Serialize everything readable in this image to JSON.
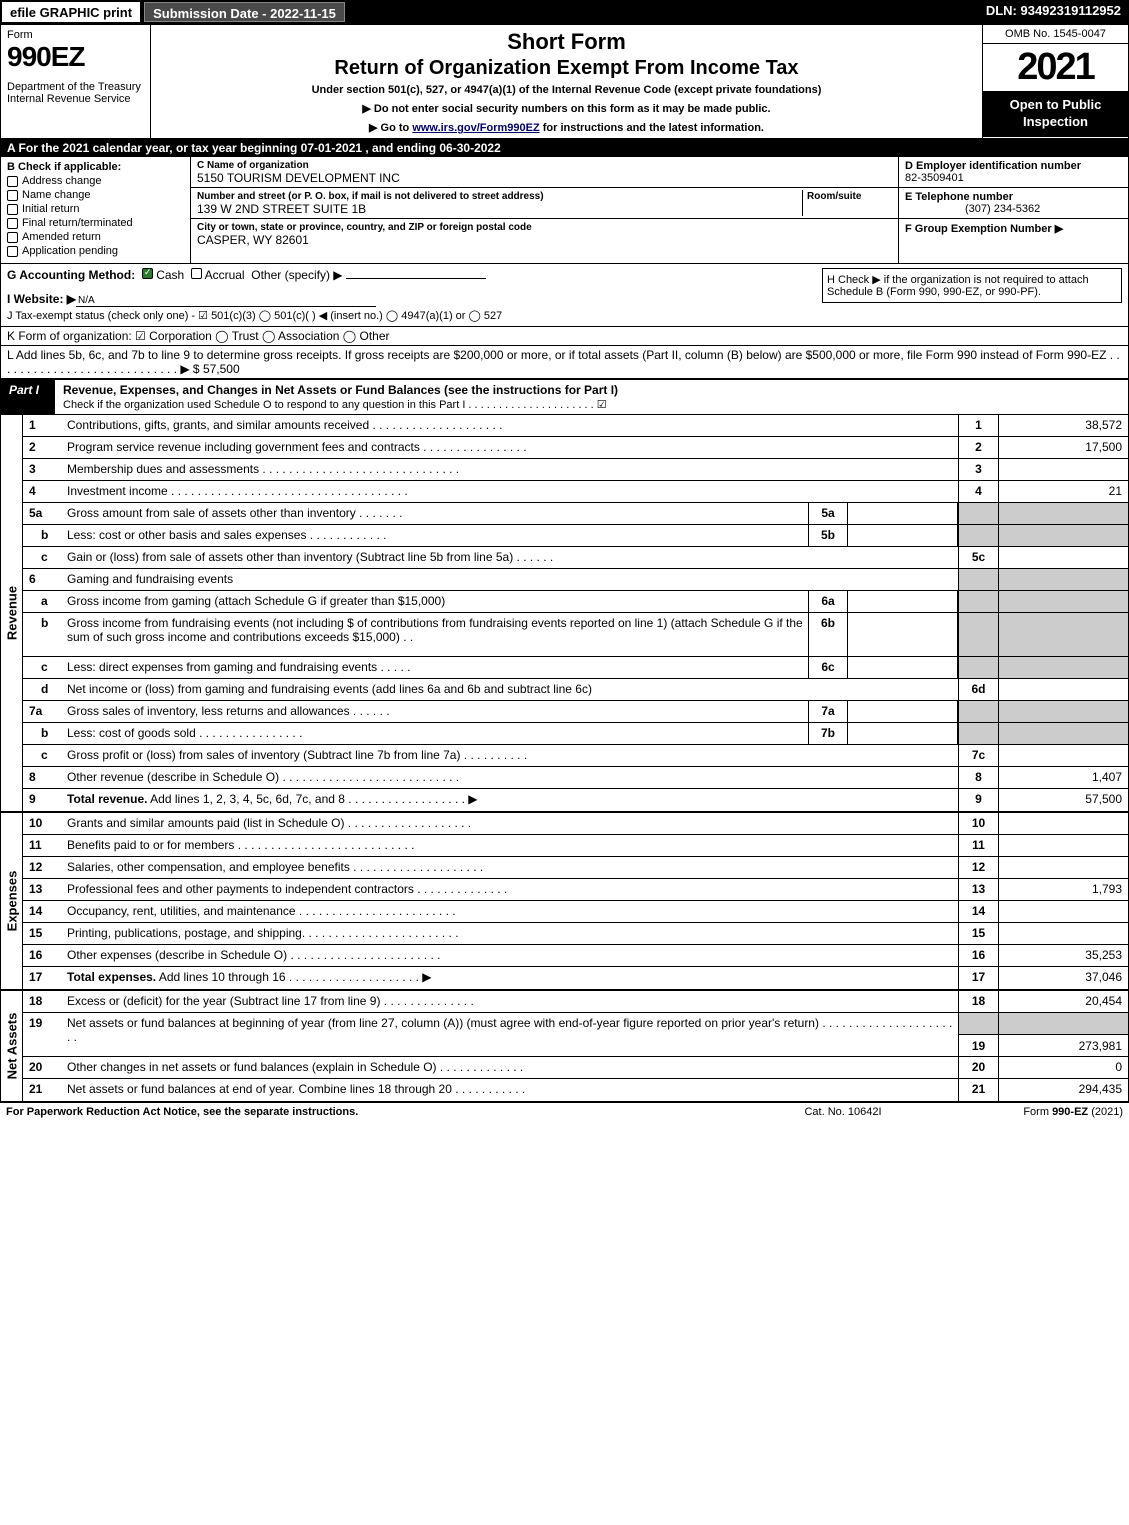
{
  "top": {
    "efile": "efile GRAPHIC print",
    "submission": "Submission Date - 2022-11-15",
    "dln": "DLN: 93492319112952"
  },
  "header": {
    "form": "Form",
    "formnum": "990EZ",
    "dept": "Department of the Treasury\nInternal Revenue Service",
    "title1": "Short Form",
    "title2": "Return of Organization Exempt From Income Tax",
    "subtitle": "Under section 501(c), 527, or 4947(a)(1) of the Internal Revenue Code (except private foundations)",
    "instr1": "▶ Do not enter social security numbers on this form as it may be made public.",
    "instr2_pre": "▶ Go to ",
    "instr2_link": "www.irs.gov/Form990EZ",
    "instr2_post": " for instructions and the latest information.",
    "omb": "OMB No. 1545-0047",
    "year": "2021",
    "open": "Open to Public Inspection"
  },
  "a": "A  For the 2021 calendar year, or tax year beginning 07-01-2021 , and ending 06-30-2022",
  "b": {
    "label": "B  Check if applicable:",
    "opts": [
      "Address change",
      "Name change",
      "Initial return",
      "Final return/terminated",
      "Amended return",
      "Application pending"
    ],
    "c_name_label": "C Name of organization",
    "c_name": "5150 TOURISM DEVELOPMENT INC",
    "c_addr_label": "Number and street (or P. O. box, if mail is not delivered to street address)",
    "c_room_label": "Room/suite",
    "c_addr": "139 W 2ND STREET SUITE 1B",
    "c_city_label": "City or town, state or province, country, and ZIP or foreign postal code",
    "c_city": "CASPER, WY  82601",
    "d_label": "D Employer identification number",
    "d_val": "82-3509401",
    "e_label": "E Telephone number",
    "e_val": "(307) 234-5362",
    "f_label": "F Group Exemption Number   ▶"
  },
  "g": {
    "label": "G Accounting Method:",
    "cash": "Cash",
    "accrual": "Accrual",
    "other": "Other (specify) ▶",
    "h": "H  Check ▶       if the organization is not required to attach Schedule B (Form 990, 990-EZ, or 990-PF)."
  },
  "i": {
    "label": "I Website: ▶",
    "val": "N/A"
  },
  "j": "J Tax-exempt status (check only one) -  ☑ 501(c)(3)  ◯ 501(c)(  ) ◀ (insert no.)  ◯ 4947(a)(1) or  ◯ 527",
  "k": "K Form of organization:   ☑ Corporation   ◯ Trust   ◯ Association   ◯ Other",
  "l": {
    "text": "L Add lines 5b, 6c, and 7b to line 9 to determine gross receipts. If gross receipts are $200,000 or more, or if total assets (Part II, column (B) below) are $500,000 or more, file Form 990 instead of Form 990-EZ  .  .  .  .  .  .  .  .  .  .  .  .  .  .  .  .  .  .  .  .  .  .  .  .  .  .  .  .  ▶ $",
    "val": "57,500"
  },
  "part1": {
    "tag": "Part I",
    "title": "Revenue, Expenses, and Changes in Net Assets or Fund Balances (see the instructions for Part I)",
    "check": "Check if the organization used Schedule O to respond to any question in this Part I  .  .  .  .  .  .  .  .  .  .  .  .  .  .  .  .  .  .  .  .  .  ☑"
  },
  "sections": {
    "revenue": "Revenue",
    "expenses": "Expenses",
    "netassets": "Net Assets"
  },
  "rows": [
    {
      "n": "1",
      "d": "Contributions, gifts, grants, and similar amounts received  .  .  .  .  .  .  .  .  .  .  .  .  .  .  .  .  .  .  .  .",
      "ln": "1",
      "v": "38,572"
    },
    {
      "n": "2",
      "d": "Program service revenue including government fees and contracts  .  .  .  .  .  .  .  .  .  .  .  .  .  .  .  .",
      "ln": "2",
      "v": "17,500"
    },
    {
      "n": "3",
      "d": "Membership dues and assessments  .  .  .  .  .  .  .  .  .  .  .  .  .  .  .  .  .  .  .  .  .  .  .  .  .  .  .  .  .  .",
      "ln": "3",
      "v": ""
    },
    {
      "n": "4",
      "d": "Investment income  .  .  .  .  .  .  .  .  .  .  .  .  .  .  .  .  .  .  .  .  .  .  .  .  .  .  .  .  .  .  .  .  .  .  .  .",
      "ln": "4",
      "v": "21"
    },
    {
      "n": "5a",
      "d": "Gross amount from sale of assets other than inventory  .  .  .  .  .  .  .",
      "mid": "5a",
      "shade": true
    },
    {
      "n": "b",
      "sub": true,
      "d": "Less: cost or other basis and sales expenses  .  .  .  .  .  .  .  .  .  .  .  .",
      "mid": "5b",
      "shade": true
    },
    {
      "n": "c",
      "sub": true,
      "d": "Gain or (loss) from sale of assets other than inventory (Subtract line 5b from line 5a)  .  .  .  .  .  .",
      "ln": "5c",
      "v": ""
    },
    {
      "n": "6",
      "d": "Gaming and fundraising events",
      "shade": true,
      "noln": true
    },
    {
      "n": "a",
      "sub": true,
      "d": "Gross income from gaming (attach Schedule G if greater than $15,000)",
      "mid": "6a",
      "shade": true
    },
    {
      "n": "b",
      "sub": true,
      "d": "Gross income from fundraising events (not including $                                    of contributions from fundraising events reported on line 1) (attach Schedule G if the sum of such gross income and contributions exceeds $15,000)     .   .",
      "mid": "6b",
      "shade": true,
      "tall": true
    },
    {
      "n": "c",
      "sub": true,
      "d": "Less: direct expenses from gaming and fundraising events   .  .  .  .  .",
      "mid": "6c",
      "shade": true
    },
    {
      "n": "d",
      "sub": true,
      "d": "Net income or (loss) from gaming and fundraising events (add lines 6a and 6b and subtract line 6c)",
      "ln": "6d",
      "v": ""
    },
    {
      "n": "7a",
      "d": "Gross sales of inventory, less returns and allowances  .  .  .  .  .  .",
      "mid": "7a",
      "shade": true
    },
    {
      "n": "b",
      "sub": true,
      "d": "Less: cost of goods sold         .  .  .  .  .  .  .  .  .  .  .  .  .  .  .  .",
      "mid": "7b",
      "shade": true
    },
    {
      "n": "c",
      "sub": true,
      "d": "Gross profit or (loss) from sales of inventory (Subtract line 7b from line 7a)  .  .  .  .  .  .  .  .  .  .",
      "ln": "7c",
      "v": ""
    },
    {
      "n": "8",
      "d": "Other revenue (describe in Schedule O)  .  .  .  .  .  .  .  .  .  .  .  .  .  .  .  .  .  .  .  .  .  .  .  .  .  .  .",
      "ln": "8",
      "v": "1,407"
    },
    {
      "n": "9",
      "d": "Total revenue. Add lines 1, 2, 3, 4, 5c, 6d, 7c, and 8   .  .  .  .  .  .  .  .  .  .  .  .  .  .  .  .  .  .     ▶",
      "ln": "9",
      "v": "57,500",
      "bold": true
    }
  ],
  "exp": [
    {
      "n": "10",
      "d": "Grants and similar amounts paid (list in Schedule O)  .  .  .  .  .  .  .  .  .  .  .  .  .  .  .  .  .  .  .",
      "ln": "10",
      "v": ""
    },
    {
      "n": "11",
      "d": "Benefits paid to or for members      .  .  .  .  .  .  .  .  .  .  .  .  .  .  .  .  .  .  .  .  .  .  .  .  .  .  .",
      "ln": "11",
      "v": ""
    },
    {
      "n": "12",
      "d": "Salaries, other compensation, and employee benefits .  .  .  .  .  .  .  .  .  .  .  .  .  .  .  .  .  .  .  .",
      "ln": "12",
      "v": ""
    },
    {
      "n": "13",
      "d": "Professional fees and other payments to independent contractors  .  .  .  .  .  .  .  .  .  .  .  .  .  .",
      "ln": "13",
      "v": "1,793"
    },
    {
      "n": "14",
      "d": "Occupancy, rent, utilities, and maintenance .  .  .  .  .  .  .  .  .  .  .  .  .  .  .  .  .  .  .  .  .  .  .  .",
      "ln": "14",
      "v": ""
    },
    {
      "n": "15",
      "d": "Printing, publications, postage, and shipping.  .  .  .  .  .  .  .  .  .  .  .  .  .  .  .  .  .  .  .  .  .  .  .",
      "ln": "15",
      "v": ""
    },
    {
      "n": "16",
      "d": "Other expenses (describe in Schedule O)     .  .  .  .  .  .  .  .  .  .  .  .  .  .  .  .  .  .  .  .  .  .  .",
      "ln": "16",
      "v": "35,253"
    },
    {
      "n": "17",
      "d": "Total expenses. Add lines 10 through 16      .  .  .  .  .  .  .  .  .  .  .  .  .  .  .  .  .  .  .  .    ▶",
      "ln": "17",
      "v": "37,046",
      "bold": true
    }
  ],
  "na": [
    {
      "n": "18",
      "d": "Excess or (deficit) for the year (Subtract line 17 from line 9)        .  .  .  .  .  .  .  .  .  .  .  .  .  .",
      "ln": "18",
      "v": "20,454"
    },
    {
      "n": "19",
      "d": "Net assets or fund balances at beginning of year (from line 27, column (A)) (must agree with end-of-year figure reported on prior year's return) .  .  .  .  .  .  .  .  .  .  .  .  .  .  .  .  .  .  .  .  .  .",
      "ln": "19",
      "v": "273,981",
      "tall": true,
      "shadetop": true
    },
    {
      "n": "20",
      "d": "Other changes in net assets or fund balances (explain in Schedule O) .  .  .  .  .  .  .  .  .  .  .  .  .",
      "ln": "20",
      "v": "0"
    },
    {
      "n": "21",
      "d": "Net assets or fund balances at end of year. Combine lines 18 through 20 .  .  .  .  .  .  .  .  .  .  .",
      "ln": "21",
      "v": "294,435"
    }
  ],
  "footer": {
    "left": "For Paperwork Reduction Act Notice, see the separate instructions.",
    "mid": "Cat. No. 10642I",
    "right": "Form 990-EZ (2021)"
  }
}
